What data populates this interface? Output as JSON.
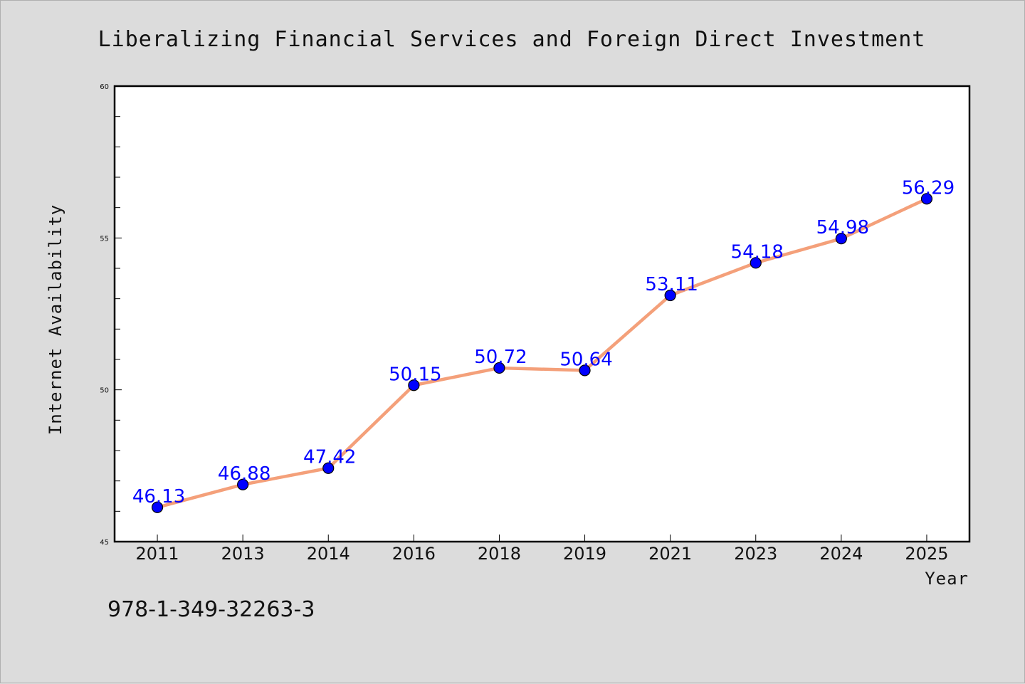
{
  "chart_data": {
    "type": "line",
    "title": "Liberalizing Financial Services and Foreign Direct Investment",
    "xlabel": "Year",
    "ylabel": "Internet Availability",
    "categories": [
      "2011",
      "2013",
      "2014",
      "2016",
      "2018",
      "2019",
      "2021",
      "2023",
      "2024",
      "2025"
    ],
    "series": [
      {
        "values": [
          46.13,
          46.88,
          47.42,
          50.15,
          50.72,
          50.64,
          53.11,
          54.18,
          54.98,
          56.29
        ],
        "labels": [
          "46.13",
          "46.88",
          "47.42",
          "50.15",
          "50.72",
          "50.64",
          "53.11",
          "54.18",
          "54.98",
          "56.29"
        ]
      }
    ],
    "ylim": [
      45,
      60
    ],
    "yticks": [
      "45",
      "50",
      "55",
      "60"
    ],
    "grid": false,
    "legend": "none",
    "colors": {
      "line": "#f4a07a",
      "marker": "#0000ff",
      "data_label": "#0000ff",
      "plot_background": "#ffffff",
      "page_background": "#dcdcdc"
    }
  },
  "footer": {
    "isbn": "978-1-349-32263-3"
  }
}
